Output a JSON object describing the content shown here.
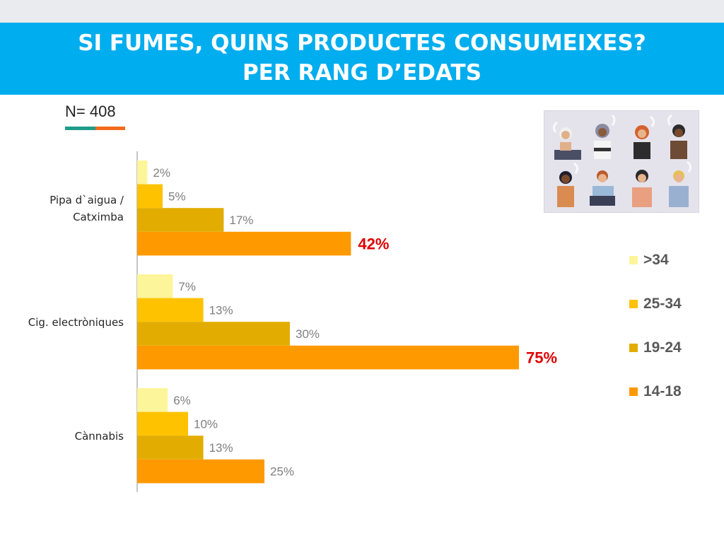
{
  "header": {
    "title_line1": "SI FUMES, QUINS PRODUCTES CONSUMEIXES?",
    "title_line2": "PER RANG D’EDATS"
  },
  "sample": {
    "label": "N= 408"
  },
  "illustration": {
    "icon": "people-smoking-illustration"
  },
  "chart_data": {
    "type": "bar",
    "orientation": "horizontal",
    "categories": [
      "Pipa d`aigua / Catximba",
      "Cig. electròniques",
      "Cànnabis"
    ],
    "category_lines": [
      [
        "Pipa d`aigua /",
        "Catximba"
      ],
      [
        "Cig. electròniques"
      ],
      [
        "Cànnabis"
      ]
    ],
    "series": [
      {
        "name": ">34",
        "values": [
          2,
          7,
          6
        ],
        "color": "#fdf59a"
      },
      {
        "name": "25-34",
        "values": [
          5,
          13,
          10
        ],
        "color": "#fec200"
      },
      {
        "name": "19-24",
        "values": [
          17,
          30,
          13
        ],
        "color": "#e2ad00"
      },
      {
        "name": "14-18",
        "values": [
          42,
          75,
          25
        ],
        "color": "#ff9900"
      }
    ],
    "value_labels": [
      [
        "2%",
        "5%",
        "17%",
        "42%"
      ],
      [
        "7%",
        "13%",
        "30%",
        "75%"
      ],
      [
        "6%",
        "10%",
        "13%",
        "25%"
      ]
    ],
    "highlighted_labels": [
      "42%",
      "75%"
    ],
    "highlight_color": "#e00000",
    "label_color": "#7f7f7f",
    "legend_order": [
      ">34",
      "25-34",
      "19-24",
      "14-18"
    ],
    "legend_position": "right",
    "grid": false,
    "xlim": [
      0,
      100
    ]
  }
}
